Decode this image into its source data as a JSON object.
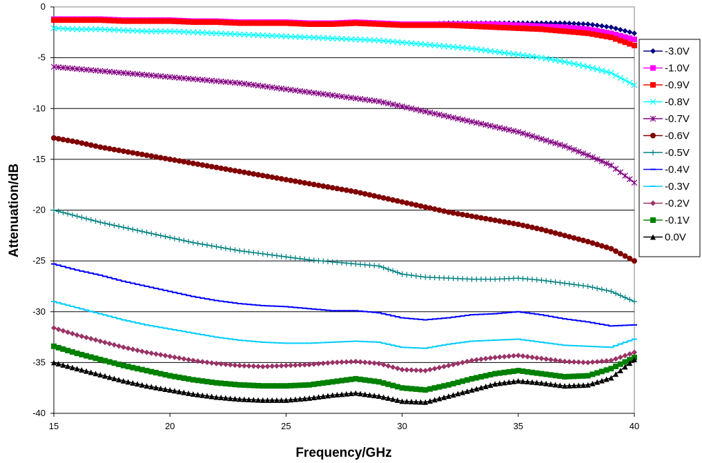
{
  "chart_data": {
    "type": "line",
    "xlabel": "Frequency/GHz",
    "ylabel": "Attenuation/dB",
    "xlim": [
      15,
      40
    ],
    "ylim": [
      -40,
      0
    ],
    "x_ticks": [
      "15",
      "20",
      "25",
      "30",
      "35",
      "40"
    ],
    "y_ticks": [
      "0",
      "-5",
      "-10",
      "-15",
      "-20",
      "-25",
      "-30",
      "-35",
      "-40"
    ],
    "grid": "horizontal major gridlines",
    "legend_position": "right",
    "x": [
      15,
      16,
      17,
      18,
      19,
      20,
      21,
      22,
      23,
      24,
      25,
      26,
      27,
      28,
      29,
      30,
      31,
      32,
      33,
      34,
      35,
      36,
      37,
      38,
      39,
      40
    ],
    "series": [
      {
        "name": "-3.0V",
        "color": "#000080",
        "marker": "diamond",
        "values": [
          -1.2,
          -1.2,
          -1.2,
          -1.3,
          -1.3,
          -1.3,
          -1.4,
          -1.4,
          -1.5,
          -1.5,
          -1.5,
          -1.6,
          -1.6,
          -1.5,
          -1.6,
          -1.7,
          -1.7,
          -1.6,
          -1.6,
          -1.6,
          -1.6,
          -1.6,
          -1.6,
          -1.7,
          -2.0,
          -2.6
        ]
      },
      {
        "name": "-1.0V",
        "color": "#FF00FF",
        "marker": "square",
        "values": [
          -1.2,
          -1.2,
          -1.2,
          -1.3,
          -1.3,
          -1.3,
          -1.4,
          -1.4,
          -1.5,
          -1.5,
          -1.5,
          -1.6,
          -1.6,
          -1.5,
          -1.6,
          -1.7,
          -1.7,
          -1.7,
          -1.7,
          -1.7,
          -1.8,
          -1.9,
          -2.0,
          -2.2,
          -2.6,
          -3.2
        ]
      },
      {
        "name": "-0.9V",
        "color": "#FF0000",
        "marker": "square",
        "values": [
          -1.3,
          -1.3,
          -1.3,
          -1.4,
          -1.4,
          -1.4,
          -1.5,
          -1.5,
          -1.6,
          -1.6,
          -1.6,
          -1.7,
          -1.7,
          -1.6,
          -1.7,
          -1.8,
          -1.8,
          -1.8,
          -1.9,
          -2.0,
          -2.1,
          -2.2,
          -2.4,
          -2.6,
          -3.0,
          -3.8
        ]
      },
      {
        "name": "-0.8V",
        "color": "#00FFFF",
        "marker": "x",
        "values": [
          -2.1,
          -2.2,
          -2.2,
          -2.3,
          -2.4,
          -2.4,
          -2.5,
          -2.6,
          -2.7,
          -2.8,
          -2.9,
          -3.0,
          -3.1,
          -3.2,
          -3.3,
          -3.5,
          -3.7,
          -3.9,
          -4.1,
          -4.4,
          -4.7,
          -5.0,
          -5.4,
          -5.9,
          -6.5,
          -7.7
        ]
      },
      {
        "name": "-0.7V",
        "color": "#800080",
        "marker": "star",
        "values": [
          -5.9,
          -6.1,
          -6.3,
          -6.5,
          -6.7,
          -6.9,
          -7.1,
          -7.3,
          -7.5,
          -7.8,
          -8.1,
          -8.4,
          -8.7,
          -9.0,
          -9.3,
          -9.8,
          -10.3,
          -10.8,
          -11.3,
          -11.8,
          -12.3,
          -13.0,
          -13.7,
          -14.6,
          -15.6,
          -17.3
        ]
      },
      {
        "name": "-0.6V",
        "color": "#800000",
        "marker": "circle",
        "values": [
          -12.9,
          -13.3,
          -13.8,
          -14.2,
          -14.6,
          -15.0,
          -15.4,
          -15.8,
          -16.2,
          -16.6,
          -17.0,
          -17.4,
          -17.8,
          -18.2,
          -18.7,
          -19.2,
          -19.7,
          -20.2,
          -20.6,
          -21.0,
          -21.4,
          -21.9,
          -22.5,
          -23.1,
          -23.8,
          -25.0
        ]
      },
      {
        "name": "-0.5V",
        "color": "#008080",
        "marker": "plus",
        "values": [
          -20.0,
          -20.6,
          -21.2,
          -21.7,
          -22.2,
          -22.7,
          -23.2,
          -23.6,
          -24.0,
          -24.3,
          -24.6,
          -24.9,
          -25.1,
          -25.3,
          -25.5,
          -26.3,
          -26.6,
          -26.7,
          -26.8,
          -26.8,
          -26.7,
          -26.9,
          -27.2,
          -27.5,
          -28.0,
          -29.0
        ]
      },
      {
        "name": "-0.4V",
        "color": "#0000FF",
        "marker": "dash",
        "values": [
          -25.3,
          -25.9,
          -26.4,
          -27.0,
          -27.5,
          -28.0,
          -28.5,
          -28.9,
          -29.2,
          -29.4,
          -29.5,
          -29.7,
          -29.9,
          -29.9,
          -30.1,
          -30.6,
          -30.8,
          -30.6,
          -30.3,
          -30.2,
          -30.0,
          -30.3,
          -30.7,
          -31.0,
          -31.4,
          -31.3
        ]
      },
      {
        "name": "-0.3V",
        "color": "#00CCFF",
        "marker": "dash",
        "values": [
          -29.0,
          -29.6,
          -30.2,
          -30.8,
          -31.3,
          -31.7,
          -32.1,
          -32.5,
          -32.8,
          -33.0,
          -33.1,
          -33.1,
          -33.0,
          -32.9,
          -33.0,
          -33.5,
          -33.6,
          -33.2,
          -32.9,
          -32.8,
          -32.7,
          -33.0,
          -33.3,
          -33.4,
          -33.5,
          -32.7
        ]
      },
      {
        "name": "-0.2V",
        "color": "#993366",
        "marker": "diamond",
        "values": [
          -31.6,
          -32.3,
          -32.9,
          -33.5,
          -34.0,
          -34.4,
          -34.8,
          -35.1,
          -35.3,
          -35.4,
          -35.3,
          -35.2,
          -35.0,
          -34.9,
          -35.1,
          -35.7,
          -35.8,
          -35.3,
          -34.8,
          -34.5,
          -34.3,
          -34.6,
          -34.9,
          -35.0,
          -34.8,
          -34.0
        ]
      },
      {
        "name": "-0.1V",
        "color": "#008000",
        "marker": "square",
        "values": [
          -33.4,
          -34.1,
          -34.7,
          -35.3,
          -35.8,
          -36.3,
          -36.7,
          -37.0,
          -37.2,
          -37.3,
          -37.3,
          -37.2,
          -36.9,
          -36.6,
          -36.9,
          -37.5,
          -37.7,
          -37.2,
          -36.6,
          -36.1,
          -35.8,
          -36.1,
          -36.4,
          -36.3,
          -35.6,
          -34.5
        ]
      },
      {
        "name": "0.0V",
        "color": "#000000",
        "marker": "triangle",
        "values": [
          -35.0,
          -35.6,
          -36.2,
          -36.8,
          -37.3,
          -37.7,
          -38.1,
          -38.4,
          -38.6,
          -38.7,
          -38.7,
          -38.5,
          -38.2,
          -38.0,
          -38.3,
          -38.8,
          -38.9,
          -38.3,
          -37.7,
          -37.1,
          -36.8,
          -37.0,
          -37.3,
          -37.2,
          -36.5,
          -34.7
        ]
      }
    ]
  }
}
